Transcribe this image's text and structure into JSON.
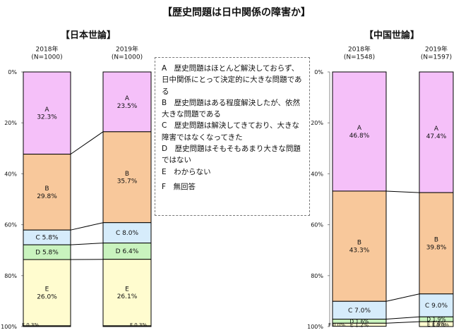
{
  "title": "【歴史問題は日中関係の障害か】",
  "colors": {
    "A": "#f5c0f9",
    "B": "#f8c89b",
    "C": "#d6ecfb",
    "D": "#c9f3be",
    "E": "#fffccf",
    "F": "#ffffff",
    "edge": "#000000",
    "connector": "#000000",
    "axis": "#888888"
  },
  "legend_items": [
    "A　歴史問題はほとんど解決しておらず、日中関係にとって決定的に大きな問題である",
    "B　歴史問題はある程度解決したが、依然大きな問題である",
    "C　歴史問題は解決してきており、大きな障害ではなくなってきた",
    "D　歴史問題はそもそもあまり大きな問題ではない",
    "E　わからない",
    "F　無回答"
  ],
  "chart_data": [
    {
      "type": "bar",
      "stacked": true,
      "title": "【日本世論】",
      "ylim": [
        0,
        100
      ],
      "y_ticks": [
        "0%",
        "20%",
        "40%",
        "60%",
        "80%",
        "100%"
      ],
      "categories": [
        "2018年\n(N=1000)",
        "2019年\n(N=1000)"
      ],
      "series": [
        {
          "name": "A",
          "values": [
            32.3,
            23.5
          ]
        },
        {
          "name": "B",
          "values": [
            29.8,
            35.7
          ]
        },
        {
          "name": "C",
          "values": [
            5.8,
            8.0
          ]
        },
        {
          "name": "D",
          "values": [
            5.8,
            6.4
          ]
        },
        {
          "name": "E",
          "values": [
            26.0,
            26.1
          ]
        },
        {
          "name": "F",
          "values": [
            0.3,
            0.3
          ]
        }
      ],
      "labels": [
        [
          "A\n32.3%",
          "B\n29.8%",
          "C 5.8%",
          "D 5.8%",
          "E\n26.0%",
          "F 0.3%"
        ],
        [
          "A\n23.5%",
          "B\n35.7%",
          "C 8.0%",
          "D 6.4%",
          "E\n26.1%",
          "F 0.3%"
        ]
      ]
    },
    {
      "type": "bar",
      "stacked": true,
      "title": "【中国世論】",
      "ylim": [
        0,
        100
      ],
      "y_ticks": [
        "0%",
        "20%",
        "40%",
        "60%",
        "80%",
        "100%"
      ],
      "categories": [
        "2018年\n(N=1548)",
        "2019年\n(N=1597)"
      ],
      "series": [
        {
          "name": "A",
          "values": [
            46.8,
            47.4
          ]
        },
        {
          "name": "B",
          "values": [
            43.3,
            39.8
          ]
        },
        {
          "name": "C",
          "values": [
            7.0,
            9.0
          ]
        },
        {
          "name": "D",
          "values": [
            1.6,
            1.9
          ]
        },
        {
          "name": "E",
          "values": [
            1.2,
            1.9
          ]
        },
        {
          "name": "F",
          "values": [
            0.0,
            0.0
          ]
        }
      ],
      "labels": [
        [
          "A\n46.8%",
          "B\n43.3%",
          "C 7.0%",
          "D 1.6%",
          "E 1.2%",
          "F 0.0%"
        ],
        [
          "A\n47.4%",
          "B\n39.8%",
          "C 9.0%",
          "D 1.9%",
          "E 1.9%",
          "F 0.0%"
        ]
      ]
    }
  ]
}
